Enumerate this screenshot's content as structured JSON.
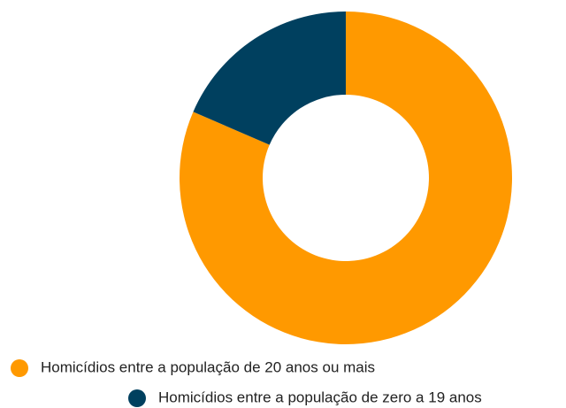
{
  "chart_data": {
    "type": "donut",
    "categories": [
      "Homicídios entre a população de 20 anos ou mais",
      "Homicídios entre a população de zero a 19 anos"
    ],
    "values": [
      81.5,
      18.5
    ],
    "colors": [
      "#ff9900",
      "#00405f"
    ]
  }
}
